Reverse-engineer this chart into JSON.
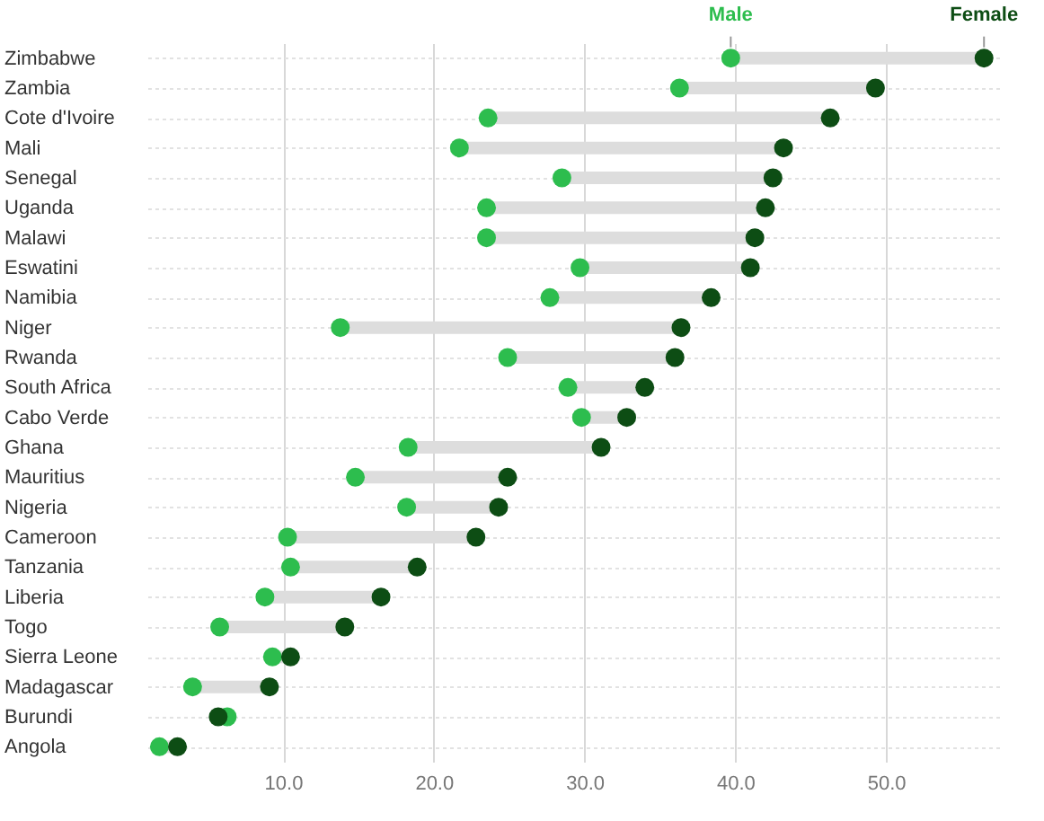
{
  "chart_data": {
    "type": "scatter",
    "categories": [
      "Zimbabwe",
      "Zambia",
      "Cote d'Ivoire",
      "Mali",
      "Senegal",
      "Uganda",
      "Malawi",
      "Eswatini",
      "Namibia",
      "Niger",
      "Rwanda",
      "South Africa",
      "Cabo Verde",
      "Ghana",
      "Mauritius",
      "Nigeria",
      "Cameroon",
      "Tanzania",
      "Liberia",
      "Togo",
      "Sierra Leone",
      "Madagascar",
      "Burundi",
      "Angola"
    ],
    "series": [
      {
        "name": "Male",
        "color": "#2dbd4e",
        "values": [
          39.7,
          36.3,
          23.6,
          21.7,
          28.5,
          23.5,
          23.5,
          29.7,
          27.7,
          13.8,
          24.9,
          28.9,
          29.8,
          18.3,
          14.8,
          18.2,
          10.3,
          10.5,
          8.8,
          5.8,
          9.3,
          4.0,
          6.3,
          1.8
        ]
      },
      {
        "name": "Female",
        "color": "#0d4d14",
        "values": [
          56.5,
          49.3,
          46.3,
          43.2,
          42.5,
          42.0,
          41.3,
          41.0,
          38.4,
          36.4,
          36.0,
          34.0,
          32.8,
          31.1,
          24.9,
          24.3,
          22.8,
          18.9,
          16.5,
          14.1,
          10.5,
          9.1,
          5.7,
          3.0
        ]
      }
    ],
    "orientation": "horizontal",
    "xlim": [
      1,
      57.5
    ],
    "xticks": [
      {
        "value": 10,
        "label": "10.0"
      },
      {
        "value": 20,
        "label": "20.0"
      },
      {
        "value": 30,
        "label": "30.0"
      },
      {
        "value": 40,
        "label": "40.0"
      },
      {
        "value": 50,
        "label": "50.0"
      }
    ],
    "grid": true,
    "marker": "circle"
  }
}
